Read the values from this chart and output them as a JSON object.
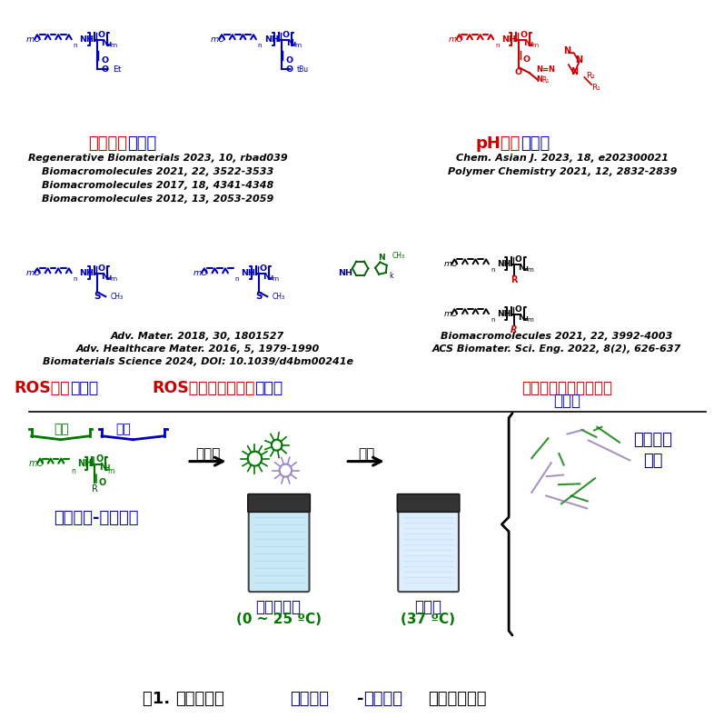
{
  "background_color": "#ffffff",
  "color_red": "#cc0000",
  "color_blue": "#0000bb",
  "color_green": "#007700",
  "color_dark_blue": "#000099",
  "color_black": "#000000",
  "color_navy": "#000080",
  "label_temp": [
    "温度响应",
    "水凝胶"
  ],
  "label_ph": [
    "pH响应",
    "水凝胶"
  ],
  "label_ros1": "ROS响应水凝胶",
  "label_ros2": "ROS响应、免疫活性水凝胶",
  "label_chiral": "手性单元调控聚氨基酸水凝胶",
  "refs1": [
    "Regenerative Biomaterials 2023, 10, rbad039",
    "Biomacromolecules 2021, 22, 3522-3533",
    "Biomacromolecules 2017, 18, 4341-4348",
    "Biomacromolecules 2012, 13, 2053-2059"
  ],
  "refs2": [
    "Chem. Asian J. 2023, 18, e202300021",
    "Polymer Chemistry 2021, 12, 2832-2839"
  ],
  "refs3": [
    "Adv. Mater. 2018, 30, 1801527",
    "Adv. Healthcare Mater. 2016, 5, 1979-1990",
    "Biomaterials Science 2024, DOI: 10.1039/d4bm00241e"
  ],
  "refs5": [
    "Biomacromolecules 2021, 22, 3992-4003",
    "ACS Biomater. Sci. Eng. 2022, 8(2), 626-637"
  ],
  "bottom_hydrophilic": "亲水",
  "bottom_hydrophobic": "疏水",
  "bottom_polymer": "聚乙二醇-聚氨基酸",
  "bottom_assemble": "自组装",
  "bottom_heat": "升温",
  "bottom_sol_label": "自组装溶液",
  "bottom_sol_temp": "(0 ~ 25 ºC)",
  "bottom_gel_label": "水凝胶",
  "bottom_gel_temp": "(37 ºC)",
  "bottom_network": "物理交联\n网络",
  "title_part1": "图1. 环境响应性",
  "title_part2": "聚乙二醇",
  "title_part3": "-",
  "title_part4": "聚氨基酸",
  "title_part5": "物理交联凝胶"
}
